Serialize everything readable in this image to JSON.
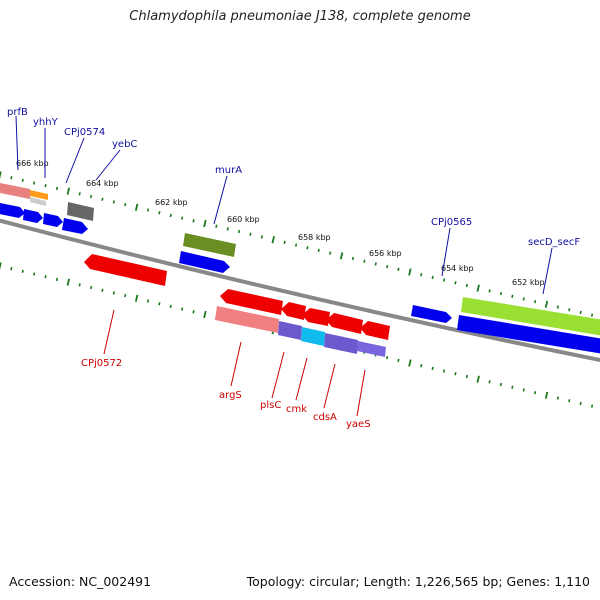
{
  "title": "Chlamydophila pneumoniae J138, complete genome",
  "footer": {
    "accession": "Accession: NC_002491",
    "summary": "Topology: circular; Length: 1,226,565 bp; Genes: 1,110"
  },
  "ruler": {
    "tick_labels": [
      "666 kbp",
      "664 kbp",
      "662 kbp",
      "660 kbp",
      "658 kbp",
      "656 kbp",
      "654 kbp",
      "652 kbp"
    ]
  },
  "genes_forward": [
    {
      "name": "prfB"
    },
    {
      "name": "yhhY"
    },
    {
      "name": "CPj0574"
    },
    {
      "name": "yebC"
    },
    {
      "name": "murA"
    },
    {
      "name": "CPj0565"
    },
    {
      "name": "secD_secF"
    }
  ],
  "genes_reverse": [
    {
      "name": "CPj0572"
    },
    {
      "name": "argS"
    },
    {
      "name": "plsC"
    },
    {
      "name": "cmk"
    },
    {
      "name": "cdsA"
    },
    {
      "name": "yaeS"
    }
  ],
  "colors": {
    "forward_label": "#1010a0",
    "reverse_label": "#cc0000",
    "tick": "#1a7a1a",
    "backbone": "#888888",
    "cds_blue": "#0000ee",
    "cds_red": "#ee0000"
  }
}
